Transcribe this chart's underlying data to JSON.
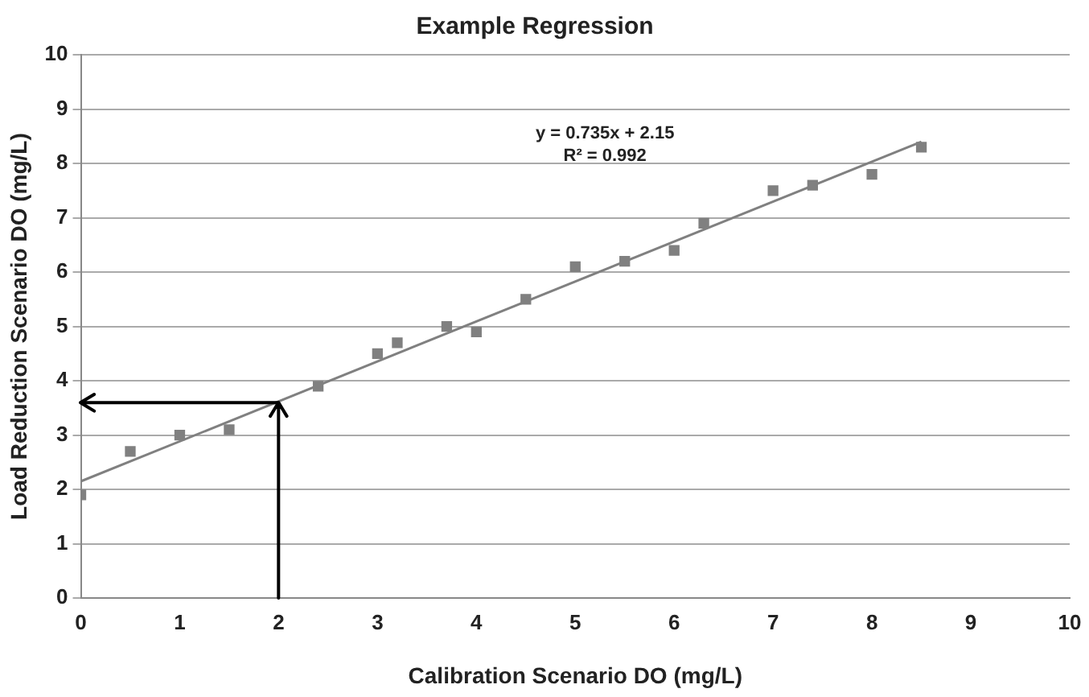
{
  "chart_data": {
    "type": "scatter",
    "title": "Example Regression",
    "xlabel": "Calibration Scenario DO (mg/L)",
    "ylabel": "Load Reduction Scenario DO (mg/L)",
    "annotations": [
      "y = 0.735x + 2.15",
      "R² = 0.992"
    ],
    "series": [
      {
        "color": "#808080",
        "marker": "square",
        "x": [
          0,
          0.5,
          1,
          1.5,
          2.4,
          3,
          3.2,
          3.7,
          4,
          4.5,
          5,
          5.5,
          6,
          6.3,
          7,
          7.4,
          8,
          8.5
        ],
        "values": [
          1.9,
          2.7,
          3.0,
          3.1,
          3.9,
          4.5,
          4.7,
          5.0,
          4.9,
          5.5,
          6.1,
          6.2,
          6.4,
          6.9,
          7.5,
          7.6,
          7.8,
          8.3
        ]
      },
      {
        "type": "line",
        "color": "#808080",
        "marker": "none",
        "x": [
          0,
          8.5
        ],
        "values": [
          2.15,
          8.4
        ]
      }
    ],
    "ref_lines": [
      {
        "axis": "x",
        "value": 2,
        "color": "#000000"
      },
      {
        "axis": "y",
        "value": 3.6,
        "color": "#000000"
      }
    ],
    "xlim": [
      0,
      10
    ],
    "xticks": [
      0,
      1,
      2,
      3,
      4,
      5,
      6,
      7,
      8,
      9,
      10
    ],
    "ylim": [
      0,
      10
    ],
    "yticks": [
      0,
      1,
      2,
      3,
      4,
      5,
      6,
      7,
      8,
      9,
      10
    ],
    "grid": "y",
    "legend": false
  }
}
